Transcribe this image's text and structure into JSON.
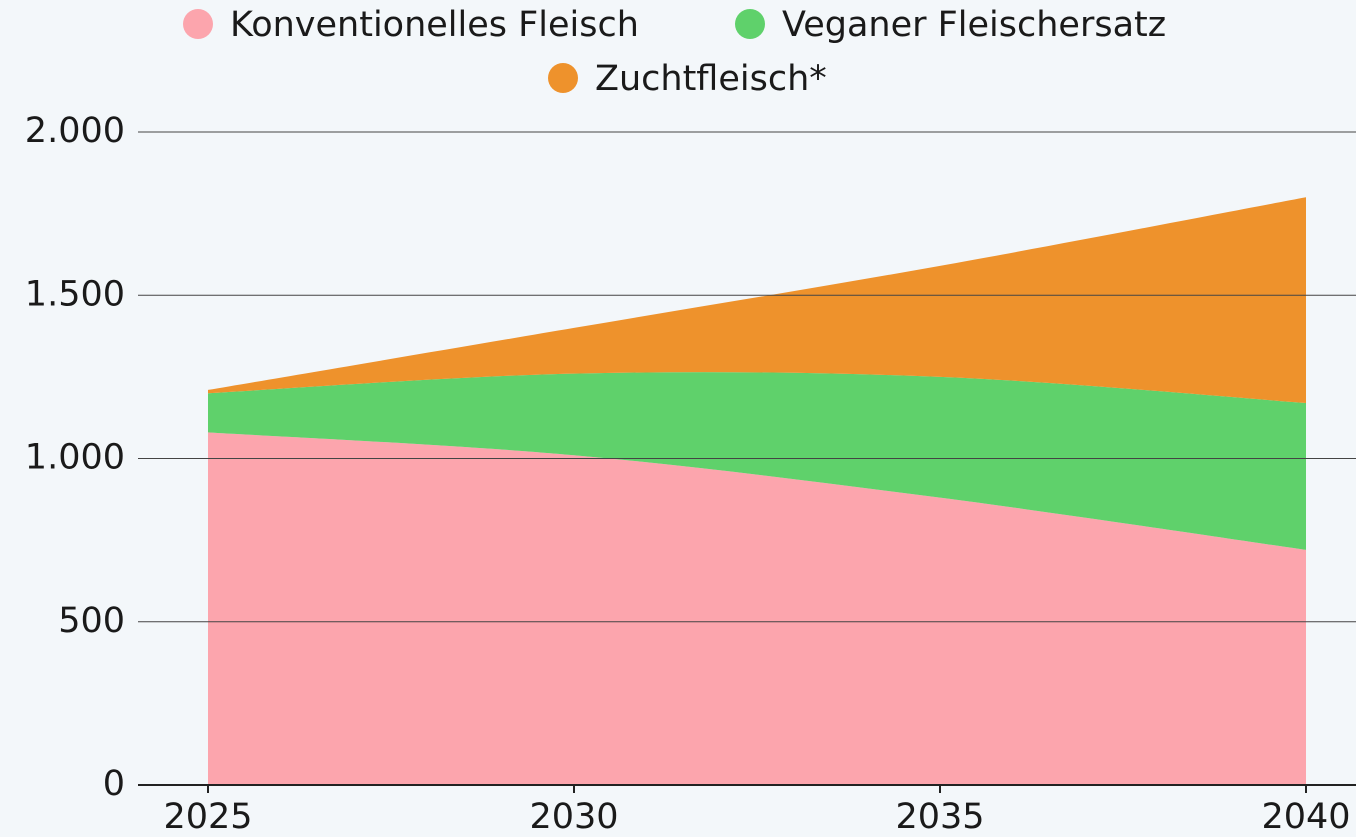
{
  "chart_data": {
    "type": "stacked_area",
    "x": [
      2025,
      2030,
      2035,
      2040
    ],
    "series": [
      {
        "name": "Konventionelles Fleisch",
        "color": "#fca5ad",
        "values": [
          1080,
          1010,
          880,
          720
        ]
      },
      {
        "name": "Veganer Fleischersatz",
        "color": "#5fd16b",
        "values": [
          120,
          250,
          370,
          450
        ]
      },
      {
        "name": "Zuchtfleisch*",
        "color": "#ee922c",
        "values": [
          10,
          140,
          340,
          630
        ]
      }
    ],
    "xlim": [
      2025,
      2040
    ],
    "xticks": [
      2025,
      2030,
      2035,
      2040
    ],
    "ylim": [
      0,
      2000
    ],
    "yticks": [
      0,
      500,
      {
        "value": 1000,
        "label": "1.000"
      },
      {
        "value": 1500,
        "label": "1.500"
      },
      {
        "value": 2000,
        "label": "2.000"
      }
    ],
    "grid": true
  }
}
